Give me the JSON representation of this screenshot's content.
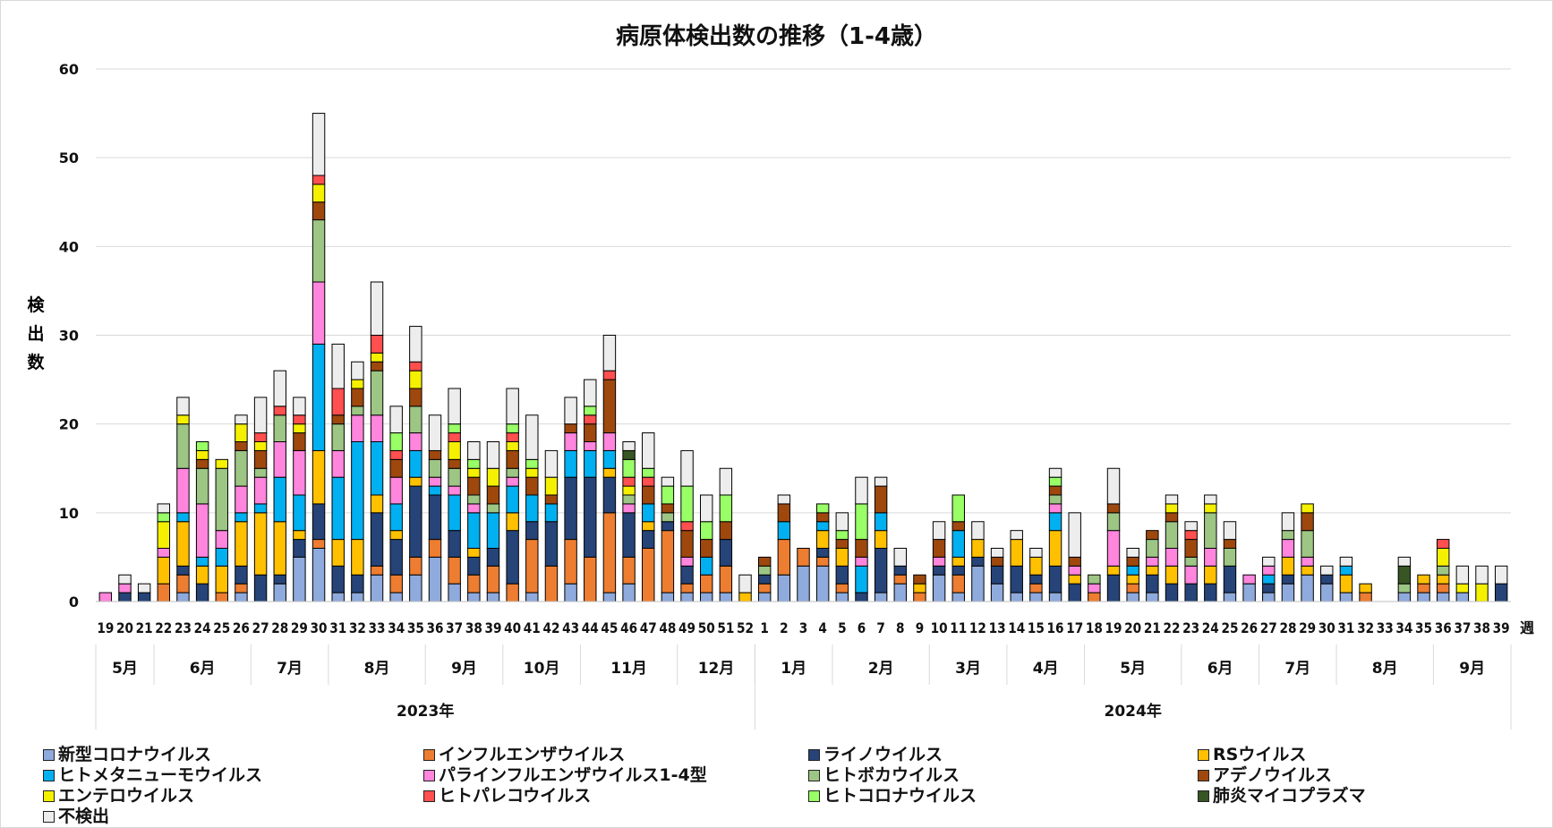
{
  "chart_data": {
    "type": "bar",
    "stacked": true,
    "title": "病原体検出数の推移（1-4歳）",
    "ylabel": "検出数",
    "xlabel_suffix": "週",
    "ylim": [
      0,
      60
    ],
    "yticks": [
      0,
      10,
      20,
      30,
      40,
      50,
      60
    ],
    "grid": true,
    "legend_position": "bottom",
    "weeks": [
      "19",
      "20",
      "21",
      "22",
      "23",
      "24",
      "25",
      "26",
      "27",
      "28",
      "29",
      "30",
      "31",
      "32",
      "33",
      "34",
      "35",
      "36",
      "37",
      "38",
      "39",
      "40",
      "41",
      "42",
      "43",
      "44",
      "45",
      "46",
      "47",
      "48",
      "49",
      "50",
      "51",
      "52",
      "1",
      "2",
      "3",
      "4",
      "5",
      "6",
      "7",
      "8",
      "9",
      "10",
      "11",
      "12",
      "13",
      "14",
      "15",
      "16",
      "17",
      "18",
      "19",
      "20",
      "21",
      "22",
      "23",
      "24",
      "25",
      "26",
      "27",
      "28",
      "29",
      "30",
      "31",
      "32",
      "33",
      "34",
      "35",
      "36",
      "37",
      "38",
      "39"
    ],
    "months": [
      {
        "label": "5月",
        "count": 3
      },
      {
        "label": "6月",
        "count": 5
      },
      {
        "label": "7月",
        "count": 4
      },
      {
        "label": "8月",
        "count": 5
      },
      {
        "label": "9月",
        "count": 4
      },
      {
        "label": "10月",
        "count": 4
      },
      {
        "label": "11月",
        "count": 5
      },
      {
        "label": "12月",
        "count": 4
      },
      {
        "label": "1月",
        "count": 4
      },
      {
        "label": "2月",
        "count": 5
      },
      {
        "label": "3月",
        "count": 4
      },
      {
        "label": "4月",
        "count": 4
      },
      {
        "label": "5月",
        "count": 5
      },
      {
        "label": "6月",
        "count": 4
      },
      {
        "label": "7月",
        "count": 4
      },
      {
        "label": "8月",
        "count": 5
      },
      {
        "label": "9月",
        "count": 4
      }
    ],
    "years": [
      {
        "label": "2023年",
        "count": 34
      },
      {
        "label": "2024年",
        "count": 39
      }
    ],
    "series": [
      {
        "name": "新型コロナウイルス",
        "color": "#8faadc",
        "values": [
          0,
          0,
          0,
          0,
          1,
          0,
          0,
          1,
          0,
          2,
          5,
          6,
          1,
          1,
          3,
          1,
          3,
          5,
          2,
          1,
          1,
          0,
          1,
          0,
          2,
          0,
          1,
          2,
          0,
          1,
          1,
          1,
          1,
          0,
          1,
          3,
          4,
          4,
          1,
          0,
          1,
          2,
          0,
          3,
          1,
          4,
          2,
          1,
          1,
          1,
          0,
          0,
          0,
          1,
          1,
          0,
          0,
          0,
          1,
          2,
          1,
          2,
          3,
          2,
          1,
          0,
          0,
          1,
          1,
          1,
          1,
          0,
          0
        ]
      },
      {
        "name": "インフルエンザウイルス",
        "color": "#ed7d31",
        "values": [
          0,
          0,
          0,
          2,
          2,
          0,
          1,
          1,
          0,
          0,
          0,
          1,
          0,
          0,
          1,
          2,
          2,
          2,
          3,
          2,
          3,
          2,
          6,
          4,
          5,
          5,
          9,
          3,
          6,
          7,
          1,
          2,
          3,
          0,
          1,
          4,
          2,
          1,
          1,
          0,
          0,
          1,
          1,
          0,
          2,
          0,
          0,
          0,
          1,
          0,
          0,
          1,
          0,
          1,
          0,
          0,
          0,
          0,
          0,
          0,
          0,
          0,
          0,
          0,
          0,
          1,
          0,
          0,
          1,
          1,
          0,
          0,
          0
        ]
      },
      {
        "name": "ライノウイルス",
        "color": "#264478",
        "values": [
          0,
          1,
          1,
          0,
          1,
          2,
          0,
          2,
          3,
          1,
          2,
          4,
          3,
          2,
          6,
          4,
          8,
          5,
          3,
          2,
          2,
          6,
          2,
          5,
          7,
          9,
          4,
          5,
          2,
          1,
          2,
          0,
          3,
          0,
          1,
          0,
          0,
          1,
          2,
          1,
          5,
          1,
          0,
          1,
          1,
          1,
          2,
          3,
          1,
          3,
          2,
          0,
          3,
          0,
          2,
          2,
          2,
          2,
          3,
          0,
          1,
          1,
          0,
          1,
          0,
          0,
          0,
          0,
          0,
          0,
          0,
          0,
          2
        ]
      },
      {
        "name": "RSウイルス",
        "color": "#ffc000",
        "values": [
          0,
          0,
          0,
          3,
          5,
          2,
          3,
          5,
          7,
          6,
          1,
          6,
          3,
          4,
          2,
          1,
          1,
          0,
          0,
          1,
          0,
          2,
          0,
          0,
          0,
          0,
          1,
          0,
          1,
          0,
          0,
          0,
          0,
          1,
          0,
          0,
          0,
          2,
          2,
          0,
          2,
          0,
          1,
          0,
          1,
          2,
          0,
          3,
          2,
          4,
          1,
          0,
          1,
          1,
          1,
          2,
          0,
          2,
          0,
          0,
          0,
          2,
          1,
          0,
          2,
          1,
          0,
          0,
          1,
          1,
          0,
          0,
          0
        ]
      },
      {
        "name": "ヒトメタニューモウイルス",
        "color": "#00b0f0",
        "values": [
          0,
          0,
          0,
          0,
          1,
          1,
          2,
          1,
          1,
          5,
          4,
          12,
          7,
          11,
          6,
          3,
          3,
          1,
          4,
          4,
          4,
          3,
          3,
          2,
          3,
          3,
          2,
          0,
          2,
          0,
          0,
          2,
          0,
          0,
          0,
          2,
          0,
          1,
          0,
          3,
          2,
          0,
          0,
          0,
          3,
          0,
          0,
          0,
          0,
          2,
          0,
          0,
          0,
          1,
          0,
          0,
          0,
          0,
          0,
          0,
          1,
          0,
          0,
          0,
          1,
          0,
          0,
          0,
          0,
          0,
          0,
          0,
          0
        ]
      },
      {
        "name": "パラインフルエンザウイルス1-4型",
        "color": "#ff85dd",
        "values": [
          1,
          1,
          0,
          1,
          5,
          6,
          2,
          3,
          3,
          4,
          5,
          7,
          3,
          3,
          3,
          3,
          2,
          1,
          1,
          1,
          0,
          1,
          0,
          0,
          2,
          1,
          2,
          1,
          0,
          0,
          1,
          0,
          0,
          0,
          0,
          0,
          0,
          0,
          0,
          1,
          0,
          0,
          0,
          1,
          0,
          0,
          0,
          0,
          0,
          1,
          1,
          1,
          4,
          0,
          1,
          2,
          2,
          2,
          0,
          1,
          1,
          2,
          1,
          0,
          0,
          0,
          0,
          0,
          0,
          0,
          0,
          0,
          0
        ]
      },
      {
        "name": "ヒトボカウイルス",
        "color": "#9dc584",
        "values": [
          0,
          0,
          0,
          0,
          5,
          4,
          7,
          4,
          1,
          3,
          0,
          7,
          3,
          1,
          5,
          0,
          3,
          2,
          2,
          1,
          1,
          1,
          0,
          0,
          0,
          0,
          0,
          1,
          0,
          1,
          0,
          0,
          0,
          0,
          1,
          0,
          0,
          0,
          0,
          0,
          0,
          0,
          0,
          0,
          0,
          0,
          0,
          0,
          0,
          1,
          0,
          1,
          2,
          0,
          2,
          3,
          1,
          4,
          2,
          0,
          0,
          1,
          3,
          0,
          0,
          0,
          0,
          1,
          0,
          1,
          0,
          0,
          0
        ]
      },
      {
        "name": "アデノウイルス",
        "color": "#9e480e",
        "values": [
          0,
          0,
          0,
          0,
          0,
          1,
          0,
          1,
          2,
          0,
          2,
          2,
          1,
          2,
          1,
          2,
          2,
          1,
          1,
          2,
          2,
          2,
          2,
          1,
          1,
          2,
          6,
          0,
          2,
          1,
          3,
          2,
          2,
          0,
          1,
          2,
          0,
          1,
          1,
          2,
          3,
          0,
          1,
          2,
          1,
          0,
          1,
          0,
          0,
          1,
          1,
          0,
          1,
          1,
          1,
          1,
          2,
          0,
          1,
          0,
          0,
          0,
          2,
          0,
          0,
          0,
          0,
          0,
          0,
          0,
          0,
          0,
          0
        ]
      },
      {
        "name": "エンテロウイルス",
        "color": "#f5f000",
        "values": [
          0,
          0,
          0,
          3,
          1,
          1,
          1,
          2,
          1,
          0,
          1,
          2,
          0,
          1,
          1,
          0,
          2,
          0,
          2,
          1,
          2,
          1,
          1,
          2,
          0,
          0,
          0,
          1,
          0,
          0,
          0,
          0,
          0,
          0,
          0,
          0,
          0,
          0,
          0,
          0,
          0,
          0,
          0,
          0,
          0,
          0,
          0,
          0,
          0,
          0,
          0,
          0,
          0,
          0,
          0,
          1,
          0,
          1,
          0,
          0,
          0,
          0,
          1,
          0,
          0,
          0,
          0,
          0,
          0,
          2,
          1,
          2,
          0
        ]
      },
      {
        "name": "ヒトパレコウイルス",
        "color": "#ff4f4f",
        "values": [
          0,
          0,
          0,
          0,
          0,
          0,
          0,
          0,
          1,
          1,
          1,
          1,
          3,
          0,
          2,
          1,
          1,
          0,
          1,
          0,
          0,
          1,
          0,
          0,
          0,
          1,
          1,
          1,
          1,
          0,
          1,
          0,
          0,
          0,
          0,
          0,
          0,
          0,
          0,
          0,
          0,
          0,
          0,
          0,
          0,
          0,
          0,
          0,
          0,
          0,
          0,
          0,
          0,
          0,
          0,
          0,
          1,
          0,
          0,
          0,
          0,
          0,
          0,
          0,
          0,
          0,
          0,
          0,
          0,
          1,
          0,
          0,
          0
        ]
      },
      {
        "name": "ヒトコロナウイルス",
        "color": "#99ff66",
        "values": [
          0,
          0,
          0,
          1,
          0,
          1,
          0,
          0,
          0,
          0,
          0,
          0,
          0,
          0,
          0,
          2,
          0,
          0,
          1,
          1,
          0,
          1,
          1,
          0,
          0,
          1,
          0,
          2,
          1,
          2,
          4,
          2,
          3,
          0,
          0,
          0,
          0,
          1,
          1,
          4,
          0,
          0,
          0,
          0,
          3,
          0,
          0,
          0,
          0,
          1,
          0,
          0,
          0,
          0,
          0,
          0,
          0,
          0,
          0,
          0,
          0,
          0,
          0,
          0,
          0,
          0,
          0,
          0,
          0,
          0,
          0,
          0,
          0
        ]
      },
      {
        "name": "肺炎マイコプラズマ",
        "color": "#375623",
        "values": [
          0,
          0,
          0,
          0,
          0,
          0,
          0,
          0,
          0,
          0,
          0,
          0,
          0,
          0,
          0,
          0,
          0,
          0,
          0,
          0,
          0,
          0,
          0,
          0,
          0,
          0,
          0,
          1,
          0,
          0,
          0,
          0,
          0,
          0,
          0,
          0,
          0,
          0,
          0,
          0,
          0,
          0,
          0,
          0,
          0,
          0,
          0,
          0,
          0,
          0,
          0,
          0,
          0,
          0,
          0,
          0,
          0,
          0,
          0,
          0,
          0,
          0,
          0,
          0,
          0,
          0,
          0,
          2,
          0,
          0,
          0,
          0,
          0
        ]
      },
      {
        "name": "不検出",
        "color": "#ededed",
        "values": [
          0,
          1,
          1,
          1,
          2,
          0,
          0,
          1,
          4,
          4,
          2,
          7,
          5,
          2,
          6,
          3,
          4,
          4,
          4,
          2,
          3,
          4,
          5,
          3,
          3,
          3,
          4,
          1,
          4,
          1,
          4,
          3,
          3,
          2,
          0,
          1,
          0,
          0,
          2,
          3,
          1,
          2,
          0,
          2,
          0,
          2,
          1,
          1,
          1,
          1,
          5,
          0,
          4,
          1,
          0,
          1,
          1,
          1,
          2,
          0,
          1,
          2,
          0,
          1,
          1,
          0,
          0,
          1,
          0,
          0,
          2,
          2,
          2
        ]
      }
    ]
  }
}
